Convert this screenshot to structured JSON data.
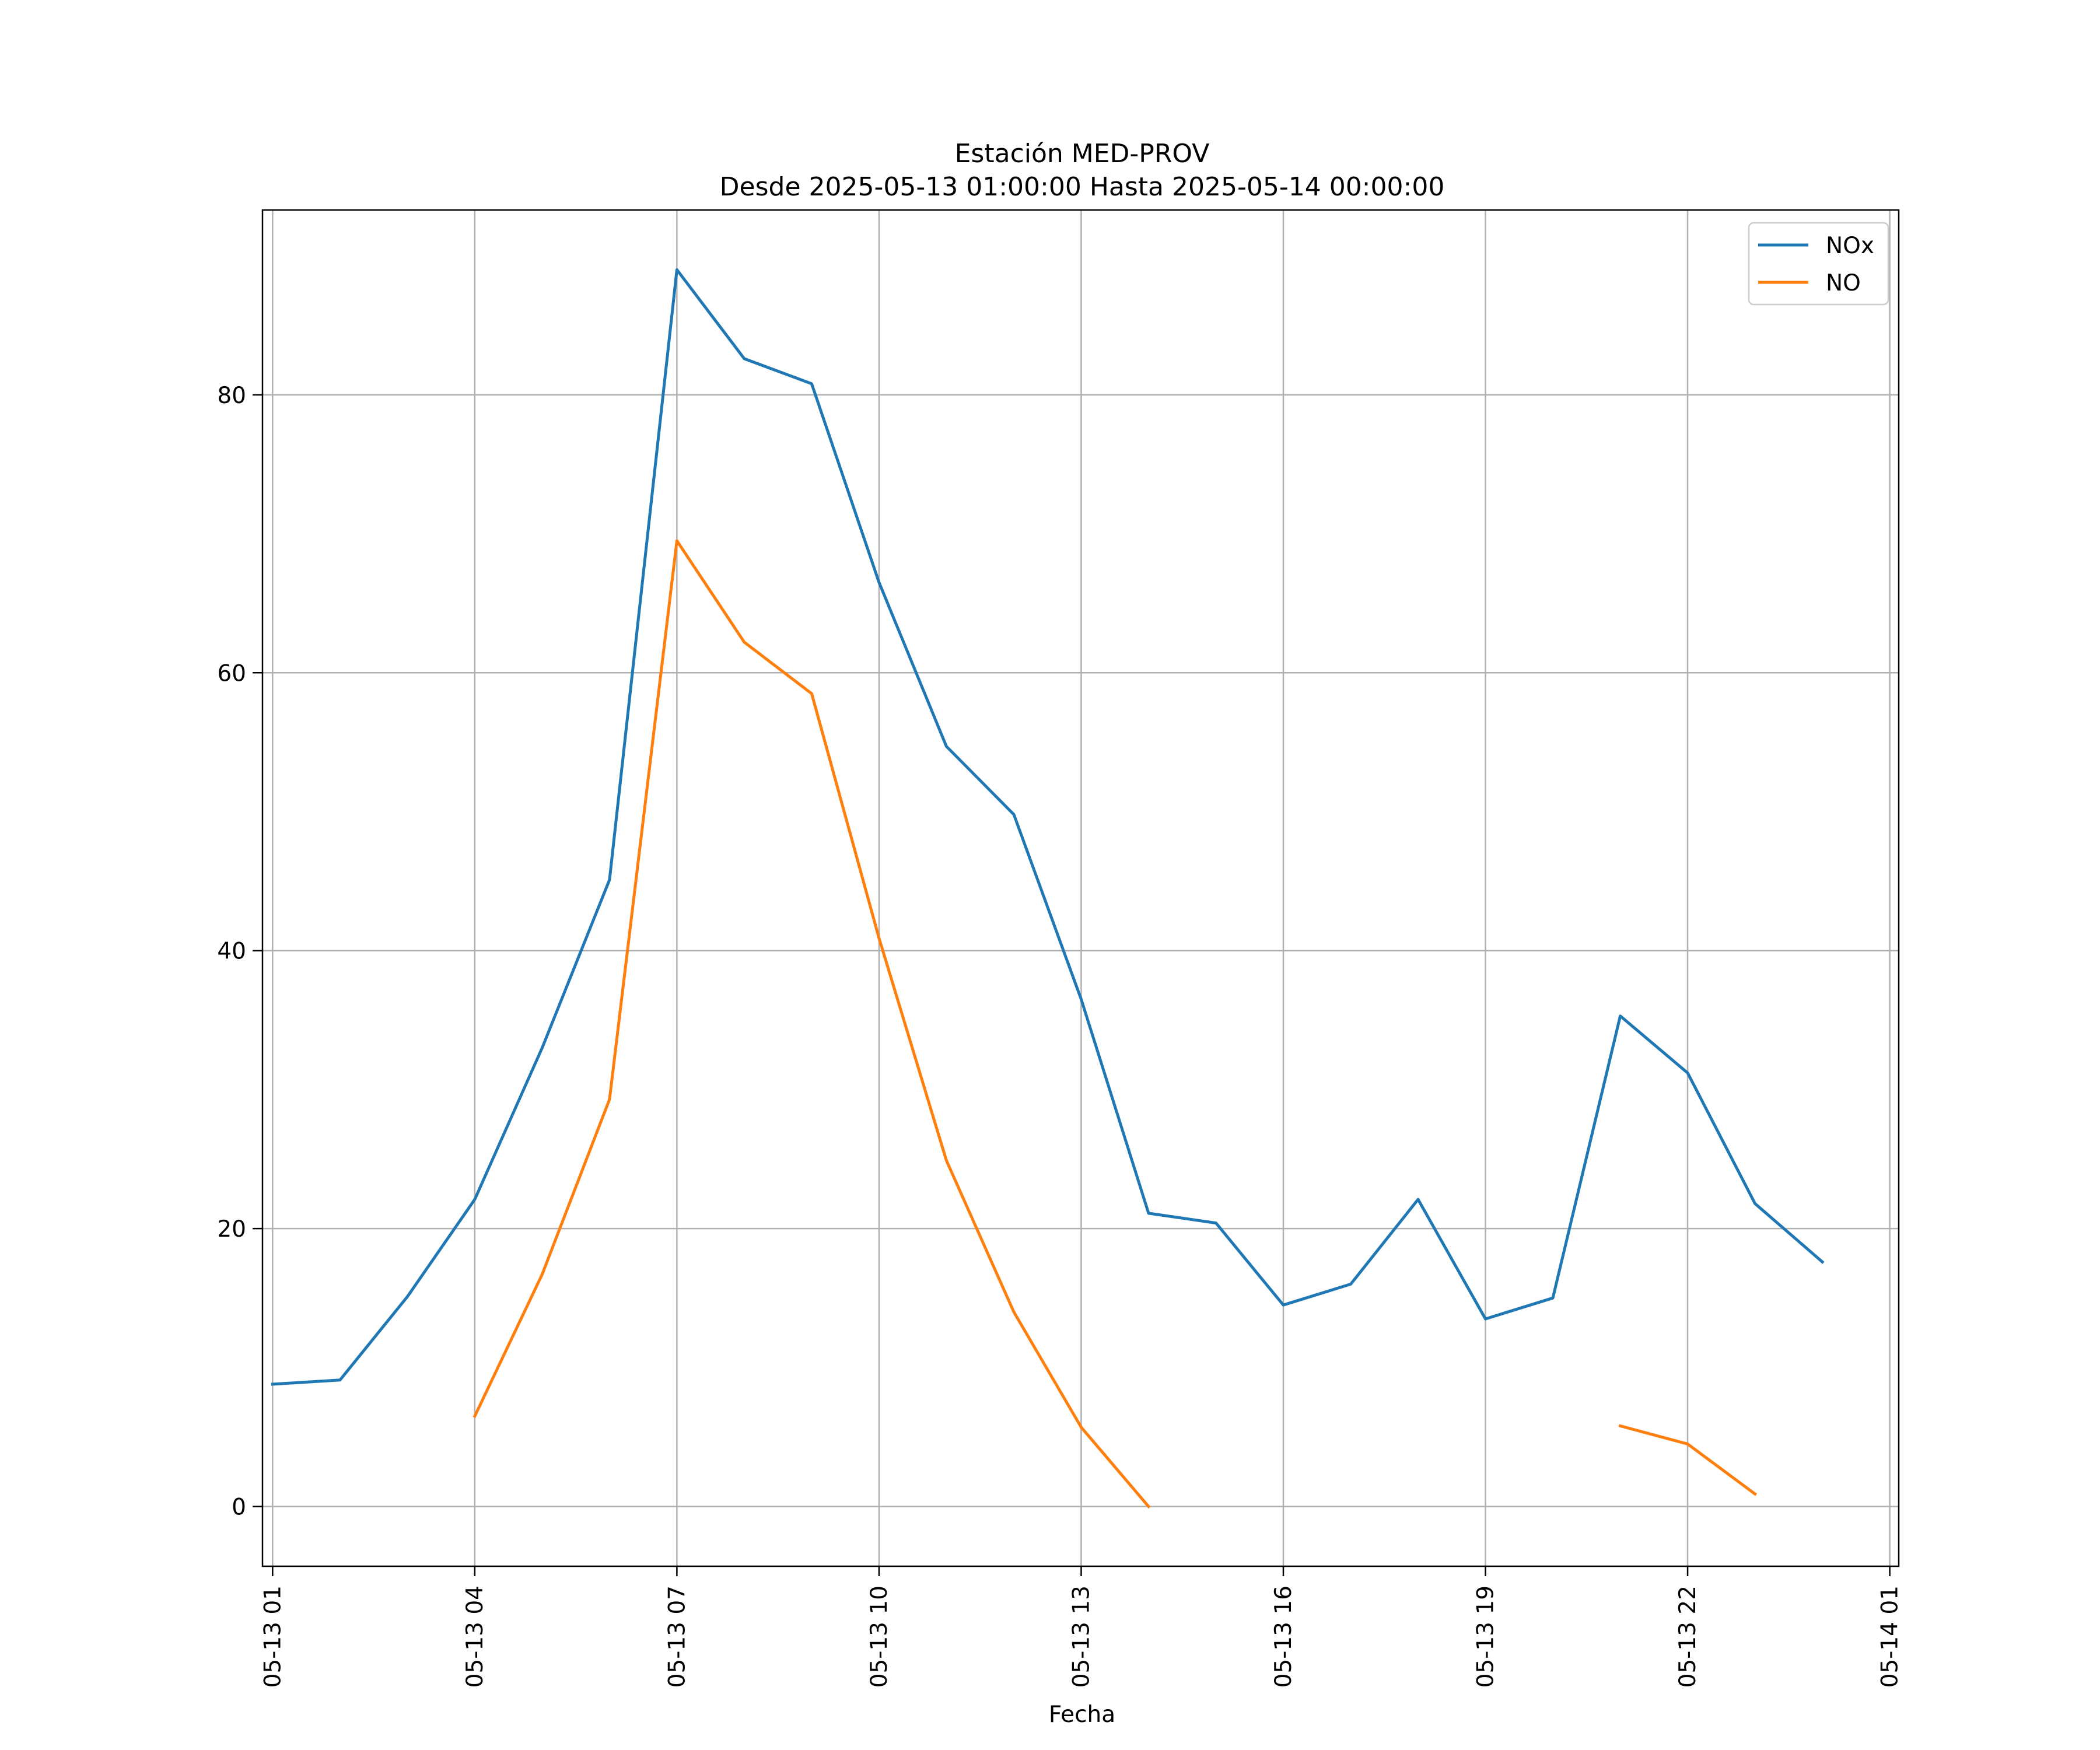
{
  "chart_data": {
    "type": "line",
    "title": "Estación MED-PROV",
    "subtitle": "Desde 2025-05-13 01:00:00 Hasta 2025-05-14 00:00:00",
    "xlabel": "Fecha",
    "ylabel": "",
    "x_tick_labels": [
      "05-13 01",
      "05-13 04",
      "05-13 07",
      "05-13 10",
      "05-13 13",
      "05-13 16",
      "05-13 19",
      "05-13 22",
      "05-14 01"
    ],
    "y_ticks": [
      0,
      20,
      40,
      60,
      80
    ],
    "ylim": [
      -4.3,
      93.3
    ],
    "xlim": [
      "2025-05-13 -0.15",
      "2025-05-14 01:08"
    ],
    "grid": true,
    "legend_position": "top-right",
    "x": [
      "2025-05-13 01:00",
      "2025-05-13 02:00",
      "2025-05-13 03:00",
      "2025-05-13 04:00",
      "2025-05-13 05:00",
      "2025-05-13 06:00",
      "2025-05-13 07:00",
      "2025-05-13 08:00",
      "2025-05-13 09:00",
      "2025-05-13 10:00",
      "2025-05-13 11:00",
      "2025-05-13 12:00",
      "2025-05-13 13:00",
      "2025-05-13 14:00",
      "2025-05-13 15:00",
      "2025-05-13 16:00",
      "2025-05-13 17:00",
      "2025-05-13 18:00",
      "2025-05-13 19:00",
      "2025-05-13 20:00",
      "2025-05-13 21:00",
      "2025-05-13 22:00",
      "2025-05-13 23:00",
      "2025-05-14 00:00"
    ],
    "series": [
      {
        "name": "NOx",
        "color": "#1f77b4",
        "values": [
          8.8,
          9.1,
          15.1,
          22.1,
          33.0,
          45.1,
          89.0,
          82.6,
          80.8,
          66.5,
          54.7,
          49.8,
          36.5,
          21.1,
          20.4,
          14.5,
          16.0,
          22.1,
          13.5,
          15.0,
          35.3,
          31.2,
          21.8,
          17.6
        ]
      },
      {
        "name": "NO",
        "color": "#ff7f0e",
        "values": [
          null,
          null,
          null,
          6.5,
          16.7,
          29.3,
          69.5,
          62.2,
          58.5,
          40.9,
          24.9,
          14.0,
          5.7,
          0.0,
          null,
          null,
          null,
          null,
          null,
          null,
          5.8,
          4.5,
          0.9,
          null
        ]
      }
    ]
  }
}
